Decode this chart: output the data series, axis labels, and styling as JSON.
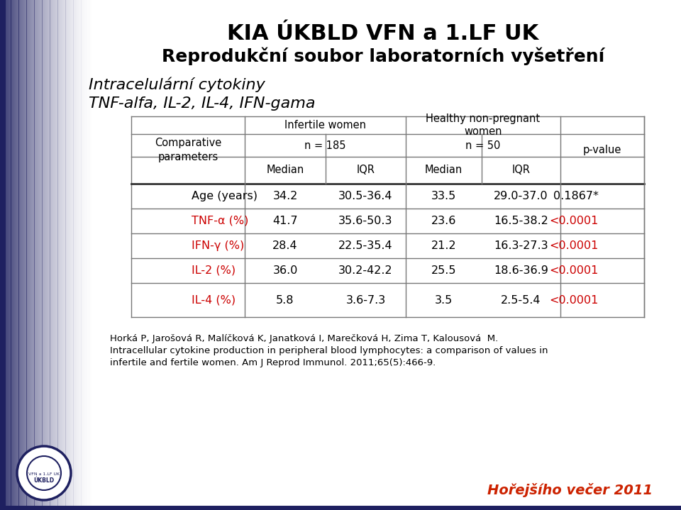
{
  "title1": "KIA ÚKBLD VFN a 1.LF UK",
  "title2": "Reprodukční soubor laboratorních vyšetření",
  "subtitle1": "Intracelulární cytokiny",
  "subtitle2": "TNF-alfa, IL-2, IL-4, IFN-gama",
  "rows": [
    {
      "label": "Age (years)",
      "label_color": "black",
      "vals": [
        "34.2",
        "30.5-36.4",
        "33.5",
        "29.0-37.0",
        "0.1867*"
      ],
      "pval_color": "black"
    },
    {
      "label": "TNF-α (%)",
      "label_color": "#cc0000",
      "vals": [
        "41.7",
        "35.6-50.3",
        "23.6",
        "16.5-38.2",
        "<0.0001"
      ],
      "pval_color": "#cc0000"
    },
    {
      "label": "IFN-γ (%)",
      "label_color": "#cc0000",
      "vals": [
        "28.4",
        "22.5-35.4",
        "21.2",
        "16.3-27.3",
        "<0.0001"
      ],
      "pval_color": "#cc0000"
    },
    {
      "label": "IL-2 (%)",
      "label_color": "#cc0000",
      "vals": [
        "36.0",
        "30.2-42.2",
        "25.5",
        "18.6-36.9",
        "<0.0001"
      ],
      "pval_color": "#cc0000"
    },
    {
      "label": "IL-4 (%)",
      "label_color": "#cc0000",
      "vals": [
        "5.8",
        "3.6-7.3",
        "3.5",
        "2.5-5.4",
        "<0.0001"
      ],
      "pval_color": "#cc0000"
    }
  ],
  "footer1": "Horká P, Jarošová R, Malíčková K, Janatková I, Marečková H, Zima T, Kalousová  M.",
  "footer2": "Intracellular cytokine production in peripheral blood lymphocytes: a comparison of values in",
  "footer3": "infertile and fertile women. Am J Reprod Immunol. 2011;65(5):466-9.",
  "watermark": "Hořejšího večer 2011",
  "left_panel_color": "#1e2060",
  "table_border_color": "#777777",
  "table_thick_line_color": "#333333"
}
